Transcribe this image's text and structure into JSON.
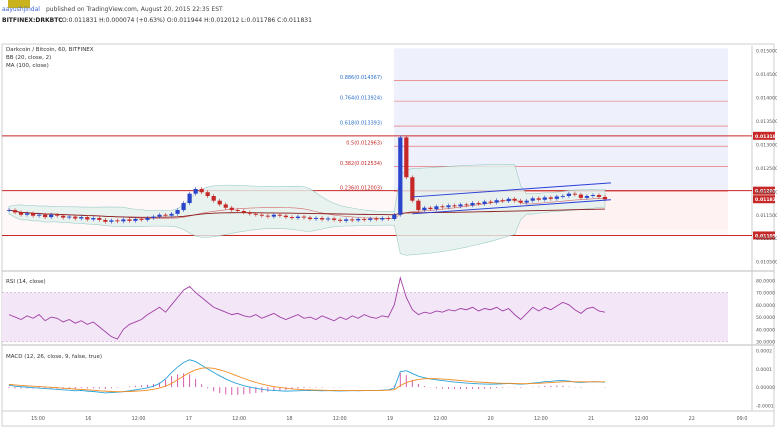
{
  "header": {
    "user": "aayushjindal",
    "published": "published on TradingView.com, August 20, 2015 22:35 EST",
    "symbol": "BITFINEX:DRKBTC",
    "ohlc": "O:0.011831 H:0.000074 (+0.63%) O:0.011944 H:0.012012 L:0.011786 C:0.011831"
  },
  "colors": {
    "bull": "#2a45c9",
    "bear": "#c62828",
    "resistance": "#c62828",
    "channel": "#2a3fd6",
    "fib": "#e53935",
    "rsi": "#a13fa6",
    "macd": "#29a3d9",
    "signal": "#f28b23",
    "hist": "#d65bb0"
  },
  "chart_data": [
    {
      "type": "candlestick",
      "title": "Darkcoin / Bitcoin, 60, BITFINEX",
      "indicators": [
        "BB (20, close, 2)",
        "MA (100, close)"
      ],
      "x_ticks": [
        "15:00",
        "16",
        "12:00",
        "17",
        "12:00",
        "18",
        "12:00",
        "19",
        "12:00",
        "20",
        "12:00",
        "21",
        "12:00",
        "22",
        "09:0"
      ],
      "ylim": [
        0.0103,
        0.0151
      ],
      "y_ticks": [
        "0.015000",
        "0.014500",
        "0.014000",
        "0.013500",
        "0.013000",
        "0.012500",
        "0.012000",
        "0.011500",
        "0.011000",
        "0.010500"
      ],
      "fib_levels": [
        {
          "label": "0.886(0.014367)",
          "value": 0.014367
        },
        {
          "label": "0.764(0.013924)",
          "value": 0.013924
        },
        {
          "label": "0.618(0.013393)",
          "value": 0.013393
        },
        {
          "label": "0.5(0.012963)",
          "value": 0.012963
        },
        {
          "label": "0.382(0.012534)",
          "value": 0.012534
        },
        {
          "label": "0.236(0.012003)",
          "value": 0.012003
        }
      ],
      "horizontal_lines": [
        {
          "label": "0.013184",
          "value": 0.013184
        },
        {
          "label": "0.012014",
          "value": 0.012014
        },
        {
          "label": "0.011058",
          "value": 0.011058
        }
      ],
      "last_price_label": "0.011831",
      "last_price": 0.011831,
      "close": [
        0.0116,
        0.01155,
        0.0115,
        0.01153,
        0.01148,
        0.0115,
        0.01145,
        0.0115,
        0.01148,
        0.01144,
        0.01146,
        0.01142,
        0.01145,
        0.0114,
        0.01143,
        0.01139,
        0.01135,
        0.01138,
        0.01136,
        0.0114,
        0.01137,
        0.01141,
        0.01139,
        0.01143,
        0.01146,
        0.0115,
        0.01148,
        0.01152,
        0.0116,
        0.01175,
        0.01195,
        0.01205,
        0.01198,
        0.0119,
        0.0118,
        0.01172,
        0.01165,
        0.0116,
        0.01158,
        0.01155,
        0.01152,
        0.0115,
        0.01148,
        0.01146,
        0.0115,
        0.01148,
        0.01145,
        0.01143,
        0.01146,
        0.01144,
        0.01141,
        0.01143,
        0.0114,
        0.01142,
        0.01139,
        0.01137,
        0.0114,
        0.01138,
        0.01141,
        0.01139,
        0.01142,
        0.0114,
        0.01143,
        0.01141,
        0.0115,
        0.01315,
        0.0123,
        0.0118,
        0.0116,
        0.01165,
        0.01162,
        0.01168,
        0.01166,
        0.0117,
        0.01168,
        0.01172,
        0.0117,
        0.01175,
        0.01173,
        0.01178,
        0.01176,
        0.01181,
        0.01179,
        0.01184,
        0.0118,
        0.01176,
        0.0118,
        0.01185,
        0.01182,
        0.01187,
        0.01184,
        0.01189,
        0.0119,
        0.01195,
        0.01193,
        0.01186,
        0.0119,
        0.01192,
        0.01188,
        0.01183
      ],
      "candle_count_shown": 100
    },
    {
      "type": "line",
      "title": "RSI (14, close)",
      "ylim": [
        28,
        86
      ],
      "y_ticks": [
        "80.0000",
        "70.0000",
        "60.0000",
        "50.0000",
        "40.0000",
        "30.0000"
      ],
      "band": [
        30,
        70
      ],
      "values": [
        52,
        50,
        48,
        51,
        49,
        52,
        47,
        50,
        49,
        46,
        48,
        45,
        47,
        44,
        46,
        42,
        38,
        34,
        32,
        40,
        44,
        46,
        48,
        52,
        55,
        58,
        54,
        60,
        66,
        72,
        75,
        70,
        66,
        62,
        58,
        56,
        54,
        52,
        53,
        51,
        50,
        52,
        49,
        51,
        53,
        50,
        48,
        50,
        52,
        49,
        50,
        48,
        51,
        49,
        47,
        50,
        48,
        51,
        49,
        52,
        50,
        49,
        51,
        50,
        60,
        82,
        66,
        56,
        52,
        54,
        53,
        55,
        54,
        56,
        55,
        57,
        56,
        58,
        55,
        57,
        56,
        58,
        55,
        57,
        52,
        48,
        53,
        58,
        55,
        58,
        56,
        59,
        62,
        60,
        56,
        53,
        57,
        58,
        55,
        54
      ]
    },
    {
      "type": "line",
      "title": "MACD (12, 26, close, 9, false, true)",
      "ylim": [
        -0.00012,
        0.00022
      ],
      "y_ticks": [
        "0.0002",
        "0.0001",
        "0.00000",
        "-0.0001"
      ],
      "series": [
        {
          "name": "MACD",
          "values": [
            1e-05,
            5e-06,
            2e-06,
            0.0,
            -3e-06,
            -5e-06,
            -8e-06,
            -1e-05,
            -1.2e-05,
            -1.5e-05,
            -1.7e-05,
            -2e-05,
            -1.8e-05,
            -2.2e-05,
            -2.4e-05,
            -2.8e-05,
            -3.2e-05,
            -3e-05,
            -2.8e-05,
            -2.5e-05,
            -2e-05,
            -1.5e-05,
            -1e-05,
            -4e-06,
            5e-06,
            2e-05,
            4.5e-05,
            8e-05,
            0.00011,
            0.000135,
            0.00015,
            0.00014,
            0.00012,
            0.0001,
            8e-05,
            6.2e-05,
            4.5e-05,
            3e-05,
            1.8e-05,
            8e-06,
            0.0,
            -6e-06,
            -1.2e-05,
            -1.6e-05,
            -1.8e-05,
            -2e-05,
            -2.2e-05,
            -2.1e-05,
            -2e-05,
            -1.9e-05,
            -1.8e-05,
            -1.9e-05,
            -2e-05,
            -1.9e-05,
            -2e-05,
            -2.1e-05,
            -2e-05,
            -1.9e-05,
            -2e-05,
            -1.9e-05,
            -1.8e-05,
            -1.9e-05,
            -1.7e-05,
            -1.5e-05,
            -5e-06,
            8.5e-05,
            9e-05,
            7.5e-05,
            6e-05,
            5.2e-05,
            4.5e-05,
            4e-05,
            3.6e-05,
            3.2e-05,
            2.8e-05,
            2.5e-05,
            2.2e-05,
            2e-05,
            1.8e-05,
            1.7e-05,
            1.6e-05,
            1.7e-05,
            1.8e-05,
            2e-05,
            1.8e-05,
            1.6e-05,
            1.8e-05,
            2.2e-05,
            2.5e-05,
            3e-05,
            3.2e-05,
            3.5e-05,
            3.6e-05,
            3.3e-05,
            2.8e-05,
            2.6e-05,
            2.8e-05,
            3e-05,
            2.9e-05,
            2.7e-05
          ]
        },
        {
          "name": "Signal",
          "values": [
            1.5e-05,
            1.2e-05,
            9e-06,
            7e-06,
            5e-06,
            3e-06,
            1e-06,
            -1e-06,
            -3e-06,
            -6e-06,
            -8e-06,
            -1.1e-05,
            -1.3e-05,
            -1.5e-05,
            -1.7e-05,
            -2e-05,
            -2.2e-05,
            -2.4e-05,
            -2.5e-05,
            -2.5e-05,
            -2.4e-05,
            -2.2e-05,
            -2e-05,
            -1.7e-05,
            -1.2e-05,
            -5e-06,
            5e-06,
            2e-05,
            4e-05,
            6e-05,
            8e-05,
            9.5e-05,
            0.000104,
            0.000106,
            0.000103,
            9.5e-05,
            8.5e-05,
            7.3e-05,
            6e-05,
            4.8e-05,
            3.6e-05,
            2.6e-05,
            1.7e-05,
            9e-06,
            3e-06,
            -2e-06,
            -6e-06,
            -1e-05,
            -1.2e-05,
            -1.4e-05,
            -1.5e-05,
            -1.6e-05,
            -1.7e-05,
            -1.8e-05,
            -1.8e-05,
            -1.9e-05,
            -1.9e-05,
            -1.9e-05,
            -1.9e-05,
            -1.9e-05,
            -1.9e-05,
            -1.9e-05,
            -1.8e-05,
            -1.7e-05,
            -1.4e-05,
            8e-06,
            2.5e-05,
            3.5e-05,
            4.2e-05,
            4.6e-05,
            4.7e-05,
            4.6e-05,
            4.4e-05,
            4.2e-05,
            3.9e-05,
            3.6e-05,
            3.3e-05,
            3e-05,
            2.8e-05,
            2.6e-05,
            2.4e-05,
            2.2e-05,
            2.1e-05,
            2.1e-05,
            2e-05,
            1.9e-05,
            1.9e-05,
            2e-05,
            2.1e-05,
            2.3e-05,
            2.5e-05,
            2.7e-05,
            2.9e-05,
            3e-05,
            3e-05,
            2.9e-05,
            2.9e-05,
            2.9e-05,
            2.9e-05,
            2.9e-05
          ]
        }
      ]
    }
  ]
}
